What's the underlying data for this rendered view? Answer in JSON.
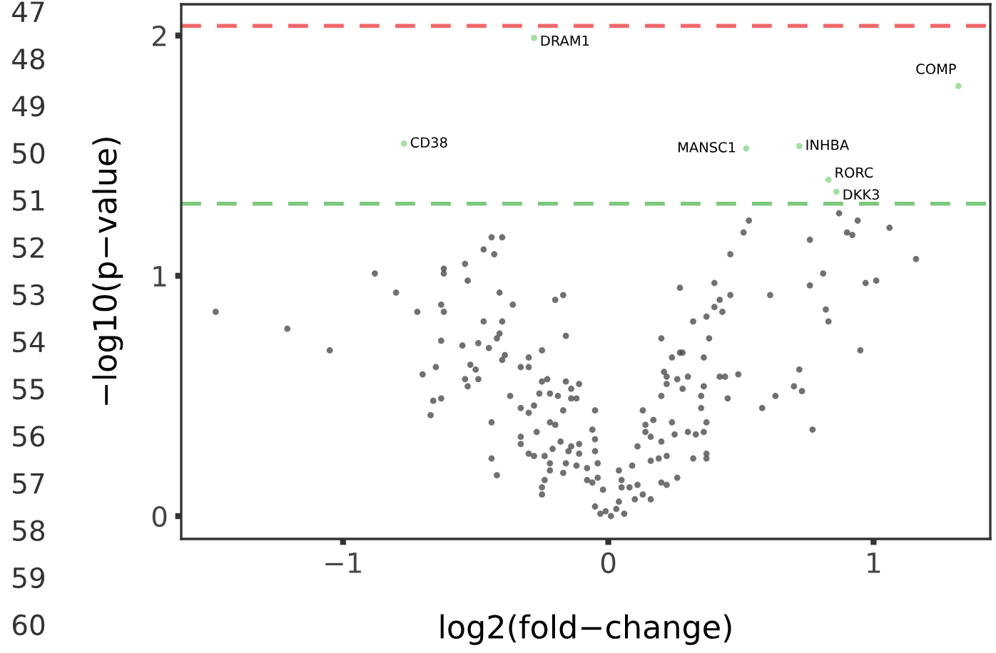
{
  "chart_data": {
    "type": "scatter",
    "xlabel": "log2(fold−change)",
    "ylabel": "−log10(p−value)",
    "xlim": [
      -1.61,
      1.44
    ],
    "ylim": [
      -0.095,
      2.13
    ],
    "xticks": [
      {
        "value": -1,
        "label": "−1"
      },
      0,
      1
    ],
    "yticks": [
      0,
      1,
      2
    ],
    "grid": false,
    "legend": false,
    "marker": "circle",
    "series": [
      {
        "color": "#4d4d4d",
        "x": [
          -1.48,
          -1.21,
          -1.05,
          -0.88,
          -0.8,
          -0.72,
          -0.62,
          -0.62,
          -0.63,
          -0.62,
          -0.63,
          -0.65,
          -0.7,
          -0.66,
          -0.63,
          -0.67,
          -0.44,
          -0.4,
          -0.47,
          -0.43,
          -0.54,
          -0.53,
          -0.41,
          -0.36,
          -0.2,
          -0.17,
          -0.47,
          -0.4,
          -0.41,
          -0.42,
          -0.16,
          -0.55,
          -0.49,
          -0.45,
          -0.39,
          -0.4,
          -0.3,
          -0.25,
          -0.52,
          -0.5,
          -0.33,
          -0.3,
          -0.54,
          -0.49,
          -0.53,
          -0.25,
          -0.23,
          -0.16,
          -0.11,
          -0.37,
          -0.26,
          -0.22,
          -0.19,
          -0.14,
          -0.14,
          -0.12,
          -0.33,
          -0.3,
          -0.28,
          -0.17,
          -0.05,
          -0.44,
          -0.22,
          -0.2,
          -0.33,
          -0.27,
          -0.06,
          -0.18,
          -0.14,
          -0.11,
          -0.21,
          -0.33,
          -0.05,
          -0.3,
          -0.28,
          -0.24,
          -0.15,
          -0.11,
          -0.05,
          -0.44,
          -0.22,
          -0.16,
          -0.12,
          -0.08,
          -0.04,
          -0.17,
          -0.22,
          -0.42,
          -0.24,
          -0.08,
          -0.04,
          -0.25,
          -0.25,
          -0.06,
          -0.02,
          0.04,
          0.09,
          0.13,
          0.14,
          0.17,
          0.16,
          0.11,
          0.16,
          0.05,
          0.05,
          0.08,
          0.11,
          0.1,
          0.13,
          0.16,
          0.04,
          0.03,
          -0.05,
          -0.01,
          0.01,
          0.06,
          -0.03,
          0.53,
          0.51,
          0.46,
          0.27,
          0.4,
          0.32,
          0.37,
          0.4,
          0.42,
          0.46,
          0.43,
          0.2,
          0.38,
          0.24,
          0.27,
          0.28,
          0.36,
          0.21,
          0.22,
          0.26,
          0.3,
          0.42,
          0.44,
          0.49,
          0.22,
          0.28,
          0.36,
          0.2,
          0.35,
          0.45,
          0.35,
          0.37,
          0.24,
          0.14,
          0.2,
          0.25,
          0.3,
          0.33,
          0.36,
          0.19,
          0.22,
          0.32,
          0.37,
          0.37,
          0.2,
          0.22,
          0.26,
          0.76,
          0.87,
          0.94,
          0.9,
          0.92,
          1.06,
          1.16,
          0.81,
          0.76,
          0.97,
          1.01,
          0.61,
          0.82,
          0.83,
          0.95,
          0.72,
          0.7,
          0.73,
          0.63,
          0.58,
          0.77
        ],
        "values": [
          0.85,
          0.78,
          0.69,
          1.01,
          0.93,
          0.85,
          1.03,
          1.01,
          0.88,
          0.85,
          0.73,
          0.62,
          0.59,
          0.48,
          0.49,
          0.42,
          1.16,
          1.16,
          1.11,
          1.09,
          1.05,
          0.98,
          0.93,
          0.88,
          0.9,
          0.92,
          0.81,
          0.81,
          0.76,
          0.74,
          0.75,
          0.71,
          0.72,
          0.7,
          0.67,
          0.65,
          0.66,
          0.69,
          0.63,
          0.61,
          0.62,
          0.62,
          0.57,
          0.57,
          0.54,
          0.56,
          0.57,
          0.56,
          0.55,
          0.5,
          0.51,
          0.51,
          0.5,
          0.49,
          0.53,
          0.49,
          0.45,
          0.43,
          0.46,
          0.44,
          0.44,
          0.39,
          0.39,
          0.38,
          0.33,
          0.35,
          0.36,
          0.31,
          0.29,
          0.3,
          0.28,
          0.3,
          0.32,
          0.26,
          0.25,
          0.25,
          0.27,
          0.26,
          0.27,
          0.24,
          0.22,
          0.22,
          0.21,
          0.2,
          0.22,
          0.18,
          0.19,
          0.17,
          0.15,
          0.15,
          0.16,
          0.12,
          0.09,
          0.14,
          0.11,
          0.19,
          0.21,
          0.44,
          0.38,
          0.4,
          0.33,
          0.29,
          0.23,
          0.15,
          0.12,
          0.12,
          0.13,
          0.07,
          0.09,
          0.07,
          0.06,
          0.03,
          0.04,
          0.02,
          0.0,
          0.01,
          0.01,
          1.23,
          1.18,
          1.09,
          0.95,
          0.97,
          0.81,
          0.83,
          0.87,
          0.9,
          0.92,
          0.85,
          0.74,
          0.74,
          0.66,
          0.68,
          0.68,
          0.66,
          0.6,
          0.58,
          0.57,
          0.58,
          0.58,
          0.58,
          0.59,
          0.55,
          0.53,
          0.54,
          0.5,
          0.5,
          0.49,
          0.45,
          0.39,
          0.39,
          0.35,
          0.31,
          0.34,
          0.35,
          0.34,
          0.35,
          0.24,
          0.25,
          0.24,
          0.26,
          0.24,
          0.14,
          0.13,
          0.16,
          1.15,
          1.26,
          1.23,
          1.18,
          1.17,
          1.2,
          1.07,
          1.01,
          0.96,
          0.97,
          0.98,
          0.92,
          0.86,
          0.81,
          0.69,
          0.61,
          0.54,
          0.52,
          0.5,
          0.45,
          0.36
        ]
      },
      {
        "color": "#8fd68f",
        "x": [
          -0.28,
          1.32,
          -0.77,
          0.52,
          0.72,
          0.83,
          0.86
        ],
        "values": [
          1.99,
          1.79,
          1.55,
          1.53,
          1.54,
          1.4,
          1.35
        ]
      }
    ],
    "ref_lines": [
      {
        "axis": "y",
        "value": 2.04,
        "color": "#f0686a",
        "line_style": "dashed"
      },
      {
        "axis": "y",
        "value": 1.3,
        "color": "#7cc87c",
        "line_style": "dashed"
      }
    ],
    "annotations": [
      {
        "text": "DRAM1",
        "x": -0.28,
        "y": 1.99
      },
      {
        "text": "COMP",
        "x": 1.32,
        "y": 1.79
      },
      {
        "text": "CD38",
        "x": -0.77,
        "y": 1.55
      },
      {
        "text": "MANSC1",
        "x": 0.52,
        "y": 1.53
      },
      {
        "text": "INHBA",
        "x": 0.72,
        "y": 1.54
      },
      {
        "text": "RORC",
        "x": 0.83,
        "y": 1.4
      },
      {
        "text": "DKK3",
        "x": 0.86,
        "y": 1.35
      },
      "47",
      "48",
      "49",
      "50",
      "51",
      "52",
      "53",
      "54",
      "55",
      "56",
      "57",
      "58",
      "59",
      "60"
    ]
  }
}
